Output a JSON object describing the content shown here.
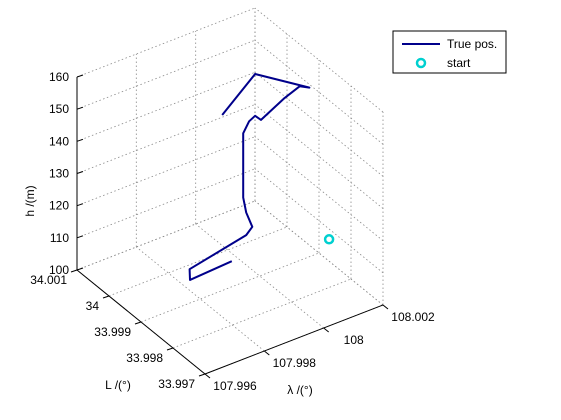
{
  "chart_data": {
    "type": "line",
    "projection": "3d",
    "xlabel": "λ /(°)",
    "ylabel": "L /(°)",
    "zlabel": "h /(m)",
    "xlim": [
      107.996,
      108.002
    ],
    "ylim": [
      33.997,
      34.001
    ],
    "zlim": [
      100,
      160
    ],
    "xticks": [
      107.996,
      107.998,
      108,
      108.002
    ],
    "xtick_labels": [
      "107.996",
      "107.998",
      "108",
      "108.002"
    ],
    "yticks": [
      33.997,
      33.998,
      33.999,
      34,
      34.001
    ],
    "ytick_labels": [
      "33.997",
      "33.998",
      "33.999",
      "34",
      "34.001"
    ],
    "zticks": [
      100,
      110,
      120,
      130,
      140,
      150,
      160
    ],
    "ztick_labels": [
      "100",
      "110",
      "120",
      "130",
      "140",
      "150",
      "160"
    ],
    "grid": true,
    "legend_position": "top-right",
    "series": [
      {
        "name": "True pos.",
        "color": "#00008b",
        "marker": "none",
        "points": [
          [
            107.9996,
            33.9995,
            102
          ],
          [
            107.9983,
            33.9996,
            100
          ],
          [
            107.9985,
            33.9998,
            101
          ],
          [
            108.0003,
            33.9997,
            106
          ],
          [
            108.0004,
            33.9996,
            109
          ],
          [
            108.0003,
            33.9997,
            113
          ],
          [
            108.0002,
            33.9997,
            118
          ],
          [
            108.0002,
            33.9997,
            125
          ],
          [
            108.0002,
            33.9997,
            132
          ],
          [
            108.0002,
            33.9997,
            138
          ],
          [
            108.0004,
            33.9997,
            141
          ],
          [
            108.0006,
            33.9997,
            142
          ],
          [
            108.0008,
            33.9997,
            140
          ],
          [
            108.0016,
            33.9997,
            144
          ],
          [
            108.002,
            33.9996,
            147
          ],
          [
            108.002,
            33.9993,
            149
          ],
          [
            108.0006,
            33.9997,
            155
          ],
          [
            107.9996,
            33.9998,
            145
          ]
        ]
      },
      {
        "name": "start",
        "color": "#00d0d0",
        "marker": "circle",
        "points": [
          [
            108.0018,
            33.9985,
            109
          ]
        ]
      }
    ]
  }
}
